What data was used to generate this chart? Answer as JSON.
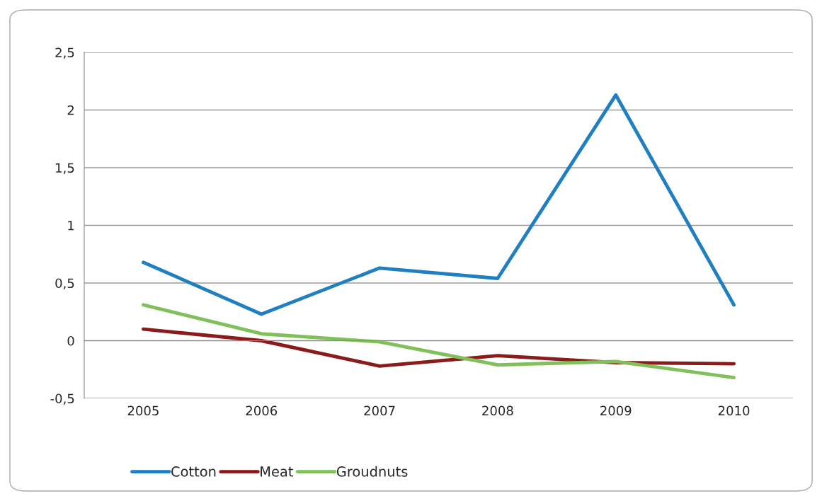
{
  "chart_data": {
    "type": "line",
    "categories": [
      "2005",
      "2006",
      "2007",
      "2008",
      "2009",
      "2010"
    ],
    "series": [
      {
        "name": "Cotton",
        "color": "#1f7fc0",
        "values": [
          0.68,
          0.23,
          0.63,
          0.54,
          2.13,
          0.31
        ]
      },
      {
        "name": "Meat",
        "color": "#8b1a1a",
        "values": [
          0.1,
          0.0,
          -0.22,
          -0.13,
          -0.19,
          -0.2
        ]
      },
      {
        "name": "Groudnuts",
        "color": "#7fc05a",
        "values": [
          0.31,
          0.06,
          -0.01,
          -0.21,
          -0.18,
          -0.32
        ]
      }
    ],
    "ylim": [
      -0.5,
      2.5
    ],
    "yticks": [
      {
        "value": -0.5,
        "label": "-0,5"
      },
      0,
      {
        "value": 0.5,
        "label": "0,5"
      },
      1,
      {
        "value": 1.5,
        "label": "1,5"
      },
      2,
      {
        "value": 2.5,
        "label": "2,5"
      }
    ],
    "grid": "y",
    "legend": "bottom left",
    "marker": "none",
    "line_style": "solid"
  }
}
